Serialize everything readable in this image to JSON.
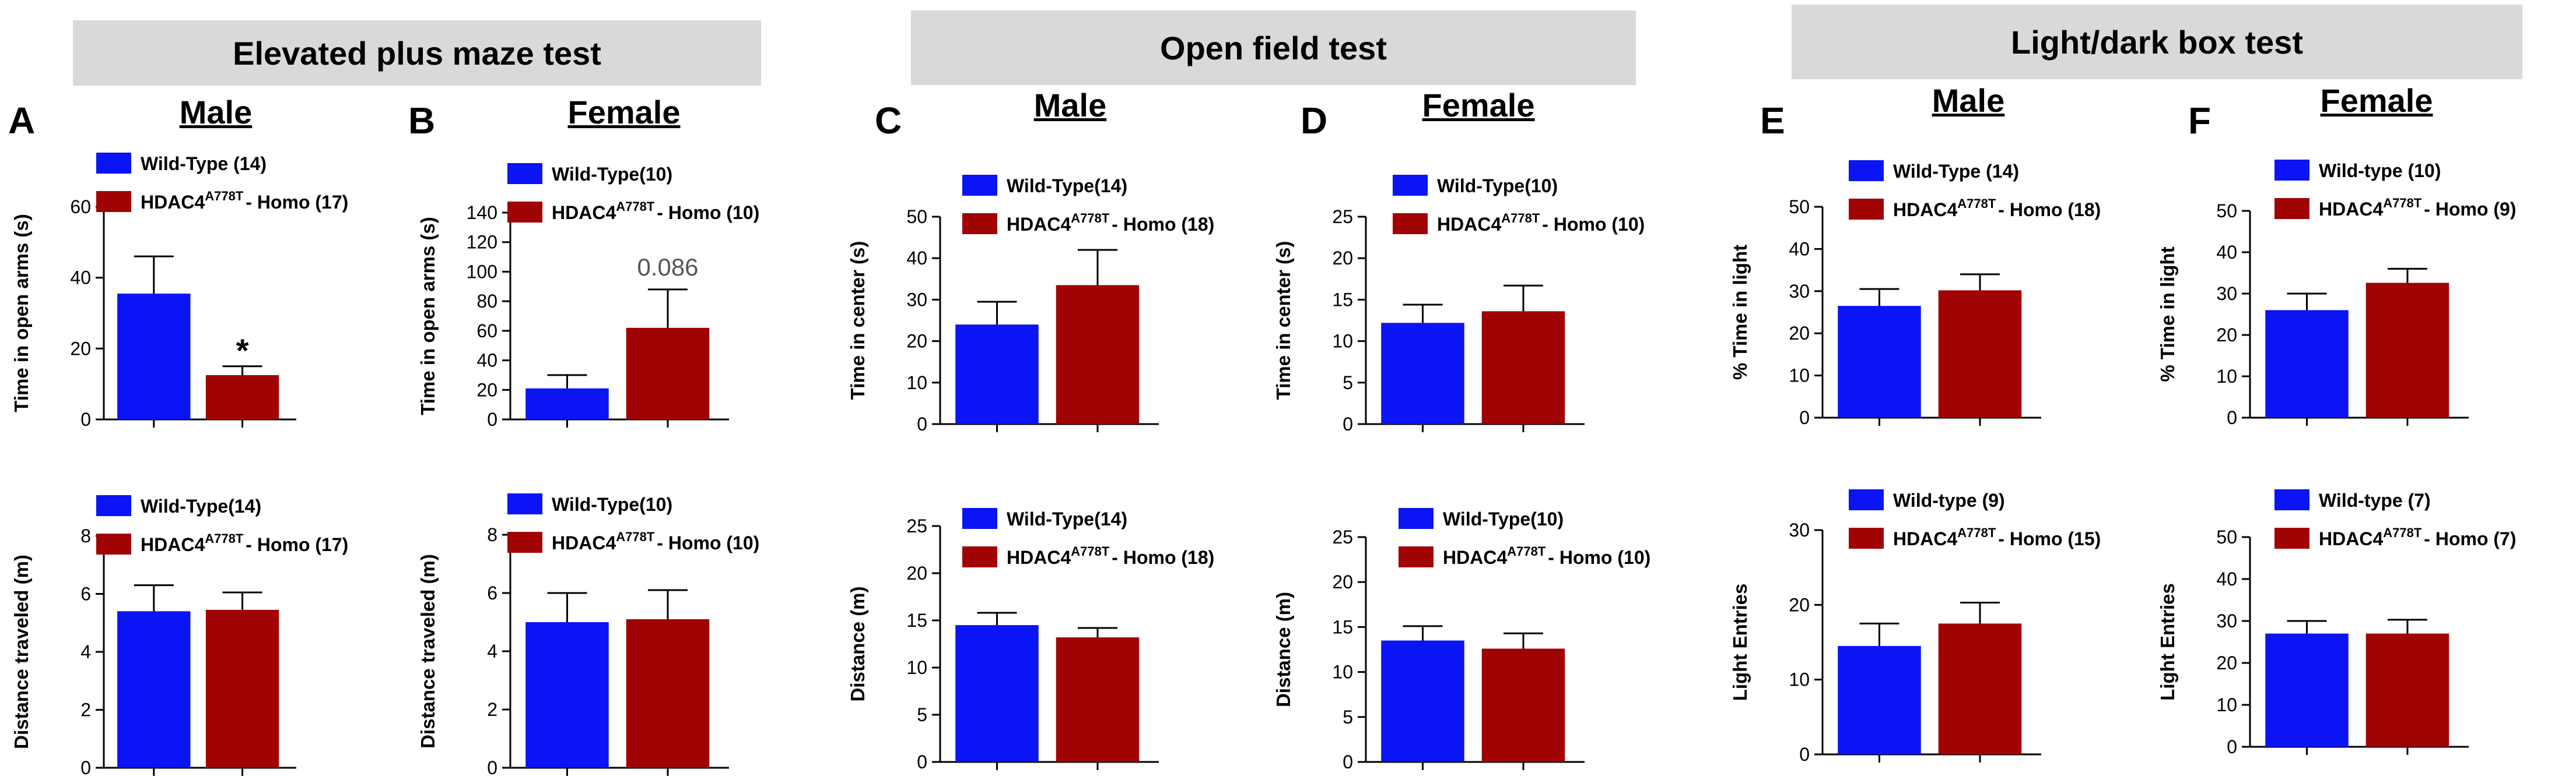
{
  "colors": {
    "wild": "#0a14f5",
    "homo": "#a00303",
    "header_bg": "#d9d9d9",
    "pvalue": "#555555"
  },
  "headers": {
    "epm": "Elevated plus maze test",
    "of": "Open field test",
    "ld": "Light/dark box test"
  },
  "panels": [
    {
      "letter": "A",
      "title": "Male"
    },
    {
      "letter": "B",
      "title": "Female"
    },
    {
      "letter": "C",
      "title": "Male"
    },
    {
      "letter": "D",
      "title": "Female"
    },
    {
      "letter": "E",
      "title": "Male"
    },
    {
      "letter": "F",
      "title": "Female"
    }
  ],
  "chart_data": [
    {
      "id": "A_top",
      "type": "bar",
      "ylabel": "Time in open arms (s)",
      "ylim": [
        0,
        60
      ],
      "ticks": [
        0,
        20,
        40,
        60
      ],
      "series": [
        {
          "name": "Wild-Type (14)",
          "value": 35.5,
          "error": 10.5
        },
        {
          "name": "HDAC4 A778T - Homo (17)",
          "value": 12.5,
          "error": 2.5
        }
      ],
      "annotation": "*"
    },
    {
      "id": "A_bottom",
      "type": "bar",
      "ylabel": "Distance traveled (m)",
      "ylim": [
        0,
        8
      ],
      "ticks": [
        0,
        2,
        4,
        6,
        8
      ],
      "series": [
        {
          "name": "Wild-Type(14)",
          "value": 5.4,
          "error": 0.9
        },
        {
          "name": "HDAC4 A778T - Homo (17)",
          "value": 5.45,
          "error": 0.6
        }
      ]
    },
    {
      "id": "B_top",
      "type": "bar",
      "ylabel": "Time in open arms (s)",
      "ylim": [
        0,
        140
      ],
      "ticks": [
        0,
        20,
        40,
        60,
        80,
        100,
        120,
        140
      ],
      "series": [
        {
          "name": "Wild-Type(10)",
          "value": 21,
          "error": 9
        },
        {
          "name": "HDAC4 A778T - Homo (10)",
          "value": 62,
          "error": 26
        }
      ],
      "annotation": "0.086"
    },
    {
      "id": "B_bottom",
      "type": "bar",
      "ylabel": "Distance traveled (m)",
      "ylim": [
        0,
        8
      ],
      "ticks": [
        0,
        2,
        4,
        6,
        8
      ],
      "series": [
        {
          "name": "Wild-Type(10)",
          "value": 5.0,
          "error": 1.0
        },
        {
          "name": "HDAC4 A778T - Homo (10)",
          "value": 5.1,
          "error": 1.0
        }
      ]
    },
    {
      "id": "C_top",
      "type": "bar",
      "ylabel": "Time in center (s)",
      "ylim": [
        0,
        50
      ],
      "ticks": [
        0,
        10,
        20,
        30,
        40,
        50
      ],
      "series": [
        {
          "name": "Wild-Type(14)",
          "value": 24,
          "error": 5.5
        },
        {
          "name": "HDAC4 A778T - Homo (18)",
          "value": 33.5,
          "error": 8.5
        }
      ]
    },
    {
      "id": "C_bottom",
      "type": "bar",
      "ylabel": "Distance (m)",
      "ylim": [
        0,
        25
      ],
      "ticks": [
        0,
        5,
        10,
        15,
        20,
        25
      ],
      "series": [
        {
          "name": "Wild-Type(14)",
          "value": 14.5,
          "error": 1.3
        },
        {
          "name": "HDAC4 A778T - Homo (18)",
          "value": 13.2,
          "error": 1.0
        }
      ]
    },
    {
      "id": "D_top",
      "type": "bar",
      "ylabel": "Time in center (s)",
      "ylim": [
        0,
        25
      ],
      "ticks": [
        0,
        5,
        10,
        15,
        20,
        25
      ],
      "series": [
        {
          "name": "Wild-Type(10)",
          "value": 12.2,
          "error": 2.2
        },
        {
          "name": "HDAC4 A778T - Homo (10)",
          "value": 13.6,
          "error": 3.1
        }
      ]
    },
    {
      "id": "D_bottom",
      "type": "bar",
      "ylabel": "Distance (m)",
      "ylim": [
        0,
        25
      ],
      "ticks": [
        0,
        5,
        10,
        15,
        20,
        25
      ],
      "series": [
        {
          "name": "Wild-Type(10)",
          "value": 13.5,
          "error": 1.6
        },
        {
          "name": "HDAC4 A778T - Homo (10)",
          "value": 12.6,
          "error": 1.7
        }
      ]
    },
    {
      "id": "E_top",
      "type": "bar",
      "ylabel": "% Time in light",
      "ylim": [
        0,
        50
      ],
      "ticks": [
        0,
        10,
        20,
        30,
        40,
        50
      ],
      "series": [
        {
          "name": "Wild-Type (14)",
          "value": 26.5,
          "error": 4.0
        },
        {
          "name": "HDAC4 A778T - Homo (18)",
          "value": 30.2,
          "error": 3.8
        }
      ]
    },
    {
      "id": "E_bottom",
      "type": "bar",
      "ylabel": "Light Entries",
      "ylim": [
        0,
        30
      ],
      "ticks": [
        0,
        10,
        20,
        30
      ],
      "series": [
        {
          "name": "Wild-type (9)",
          "value": 14.5,
          "error": 3.0
        },
        {
          "name": "HDAC4 A778T - Homo (15)",
          "value": 17.5,
          "error": 2.8
        }
      ]
    },
    {
      "id": "F_top",
      "type": "bar",
      "ylabel": "% Time in light",
      "ylim": [
        0,
        50
      ],
      "ticks": [
        0,
        10,
        20,
        30,
        40,
        50
      ],
      "series": [
        {
          "name": "Wild-type (10)",
          "value": 26.0,
          "error": 4.0
        },
        {
          "name": "HDAC4 A778T - Homo (9)",
          "value": 32.6,
          "error": 3.4
        }
      ]
    },
    {
      "id": "F_bottom",
      "type": "bar",
      "ylabel": "Light Entries",
      "ylim": [
        0,
        50
      ],
      "ticks": [
        0,
        10,
        20,
        30,
        40,
        50
      ],
      "series": [
        {
          "name": "Wild-type (7)",
          "value": 27.0,
          "error": 3.0
        },
        {
          "name": "HDAC4 A778T - Homo (7)",
          "value": 27.0,
          "error": 3.3
        }
      ]
    }
  ]
}
